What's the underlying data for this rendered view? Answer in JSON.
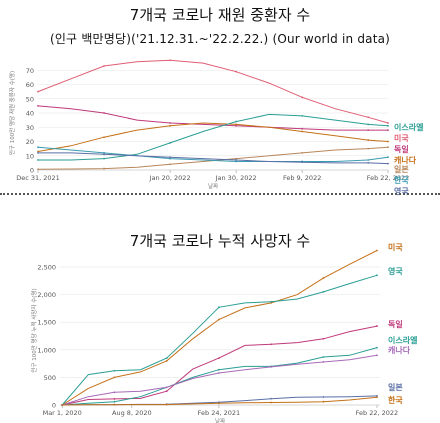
{
  "header": {
    "title1": "7개국 코로나 재원 중환자 수",
    "subtitle1": "(인구 백만명당)('21.12.31.~'22.2.22.) (Our world in data)",
    "title2": "7개국 코로나 누적 사망자 수"
  },
  "chart_data": [
    {
      "type": "line",
      "title": "7개국 코로나 재원 중환자 수",
      "subtitle": "(인구 백만명당)('21.12.31.~'22.2.22.) (Our world in data)",
      "xlabel": "날짜",
      "ylabel": "인구 100만 명당 재원 중환자 수(명)",
      "x_ticks": [
        "Dec 31, 2021",
        "Jan 20, 2022",
        "Jan 30, 2022",
        "Feb 9, 2022",
        "Feb 22, 2022"
      ],
      "x_tick_positions": [
        0,
        20,
        30,
        40,
        53
      ],
      "xlim": [
        0,
        53
      ],
      "ylim": [
        0,
        80
      ],
      "y_ticks": [
        0,
        10,
        20,
        30,
        40,
        50,
        60,
        70
      ],
      "grid": true,
      "x": [
        0,
        5,
        10,
        15,
        20,
        25,
        30,
        35,
        40,
        45,
        50,
        53
      ],
      "series": [
        {
          "name": "미국",
          "color": "#e05c73",
          "values": [
            55,
            64,
            73,
            76,
            77,
            75,
            69,
            61,
            51,
            43,
            37,
            33
          ]
        },
        {
          "name": "독일",
          "color": "#c0397a",
          "values": [
            45,
            43,
            40,
            35,
            33,
            32,
            31,
            30,
            29,
            28,
            28,
            28
          ]
        },
        {
          "name": "캐나다",
          "color": "#c47018",
          "values": [
            13,
            17,
            23,
            28,
            31,
            33,
            32,
            30,
            27,
            24,
            21,
            20
          ]
        },
        {
          "name": "이스라엘",
          "color": "#2a9e94",
          "values": [
            7,
            7,
            8,
            11,
            19,
            27,
            34,
            39,
            38,
            35,
            32,
            31
          ]
        },
        {
          "name": "일본",
          "color": "#b8865a",
          "values": [
            0.5,
            0.7,
            1,
            2,
            4,
            6,
            8,
            10,
            12,
            14,
            15,
            16
          ]
        },
        {
          "name": "한국",
          "color": "#3a9bb0",
          "values": [
            16,
            14,
            12,
            10,
            8,
            7,
            6,
            6,
            6,
            6,
            7,
            9
          ]
        },
        {
          "name": "영국",
          "color": "#5a6fa6",
          "values": [
            12,
            12,
            11,
            10,
            9,
            8,
            7,
            6,
            5.5,
            5,
            5,
            4.5
          ]
        }
      ]
    },
    {
      "type": "line",
      "title": "7개국 코로나 누적 사망자 수",
      "xlabel": "날짜",
      "ylabel": "인구 100만 명당 누적 사망자 수(명)",
      "x_ticks": [
        "Mar 1, 2020",
        "Aug 8, 2020",
        "Feb 24, 2021",
        "Feb 22, 2022"
      ],
      "x_tick_positions": [
        0,
        160,
        360,
        723
      ],
      "xlim": [
        -5,
        730
      ],
      "ylim": [
        0,
        2700
      ],
      "y_ticks": [
        0,
        500,
        1000,
        1500,
        2000,
        2500
      ],
      "grid": true,
      "x": [
        0,
        60,
        120,
        180,
        240,
        300,
        360,
        420,
        480,
        540,
        600,
        660,
        723
      ],
      "series": [
        {
          "name": "미국",
          "color": "#c47018",
          "values": [
            0,
            300,
            500,
            600,
            800,
            1200,
            1550,
            1760,
            1850,
            2000,
            2300,
            2550,
            2800
          ]
        },
        {
          "name": "영국",
          "color": "#2a9e94",
          "values": [
            0,
            550,
            620,
            640,
            850,
            1300,
            1770,
            1850,
            1870,
            1920,
            2050,
            2200,
            2350
          ]
        },
        {
          "name": "독일",
          "color": "#c0397a",
          "values": [
            0,
            100,
            110,
            120,
            250,
            650,
            850,
            1080,
            1100,
            1130,
            1200,
            1330,
            1430
          ]
        },
        {
          "name": "이스라엘",
          "color": "#2a9e94",
          "values": [
            0,
            30,
            60,
            150,
            320,
            500,
            640,
            700,
            700,
            760,
            870,
            900,
            1040
          ]
        },
        {
          "name": "캐나다",
          "color": "#a86ab8",
          "values": [
            0,
            150,
            230,
            250,
            320,
            480,
            580,
            640,
            690,
            740,
            780,
            820,
            900
          ]
        },
        {
          "name": "일본",
          "color": "#5a6fa6",
          "values": [
            0,
            8,
            8,
            10,
            15,
            30,
            50,
            80,
            115,
            140,
            145,
            150,
            165
          ]
        },
        {
          "name": "한국",
          "color": "#c47018",
          "values": [
            0,
            5,
            6,
            7,
            8,
            20,
            30,
            40,
            45,
            50,
            60,
            90,
            140
          ]
        }
      ],
      "end_labels": [
        "미국",
        "영국",
        "독일",
        "이스라엘",
        "캐나다",
        "일본",
        "한국"
      ]
    }
  ]
}
